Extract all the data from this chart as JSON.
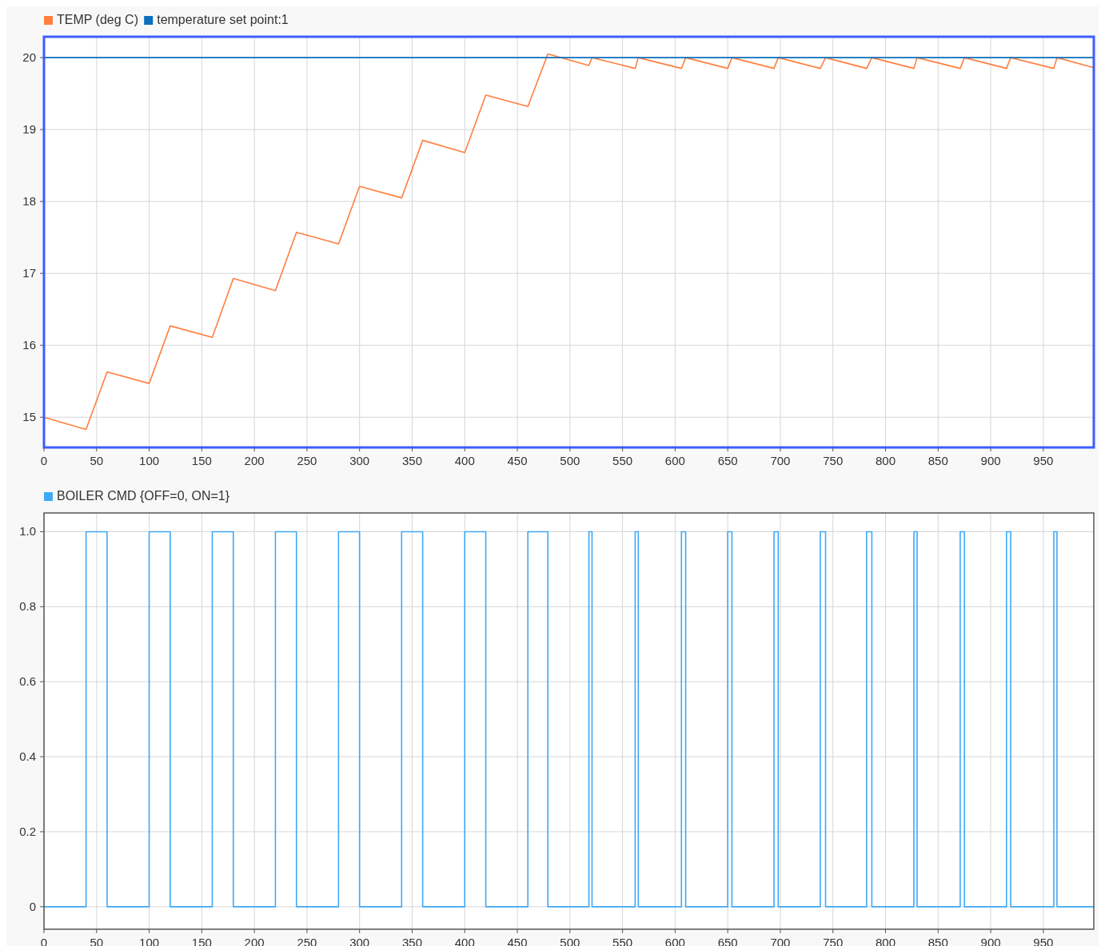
{
  "chart_data": [
    {
      "type": "line",
      "legend": "top left",
      "grid": true,
      "xlim": [
        0,
        998
      ],
      "ylim": [
        14.58,
        20.29
      ],
      "xticks": [
        0,
        50,
        100,
        150,
        200,
        250,
        300,
        350,
        400,
        450,
        500,
        550,
        600,
        650,
        700,
        750,
        800,
        850,
        900,
        950
      ],
      "yticks": [
        15,
        16,
        17,
        18,
        19,
        20
      ],
      "series": [
        {
          "name": "TEMP (deg C)",
          "color": "#ff7f3f",
          "x": [
            0,
            40,
            60,
            100,
            120,
            160,
            180,
            220,
            240,
            280,
            300,
            340,
            360,
            400,
            420,
            460,
            479,
            518,
            521,
            562,
            565,
            606,
            610,
            650,
            654,
            694,
            698,
            738,
            743,
            782,
            787,
            827,
            830,
            871,
            875,
            915,
            919,
            960,
            963,
            998
          ],
          "values": [
            15.0,
            14.83,
            15.63,
            15.47,
            16.27,
            16.11,
            16.93,
            16.76,
            17.57,
            17.41,
            18.21,
            18.05,
            18.85,
            18.68,
            19.48,
            19.32,
            20.05,
            19.89,
            20.0,
            19.85,
            20.0,
            19.85,
            20.0,
            19.85,
            20.0,
            19.85,
            20.0,
            19.85,
            20.0,
            19.85,
            20.0,
            19.85,
            20.0,
            19.85,
            20.0,
            19.85,
            20.0,
            19.85,
            20.0,
            19.86
          ]
        },
        {
          "name": "temperature set point:1",
          "color": "#0b6fbd",
          "x": [
            0,
            998
          ],
          "values": [
            20,
            20
          ]
        }
      ]
    },
    {
      "type": "step",
      "legend": "top left",
      "grid": true,
      "xlim": [
        0,
        998
      ],
      "ylim": [
        -0.06,
        1.05
      ],
      "xticks": [
        0,
        50,
        100,
        150,
        200,
        250,
        300,
        350,
        400,
        450,
        500,
        550,
        600,
        650,
        700,
        750,
        800,
        850,
        900,
        950
      ],
      "yticks": [
        0,
        0.2,
        0.4,
        0.6,
        0.8,
        {
          "value": 1,
          "label": "1.0"
        }
      ],
      "series": [
        {
          "name": "BOILER CMD {OFF=0, ON=1}",
          "color": "#3fa9f5",
          "x": [
            0,
            40,
            60,
            100,
            120,
            160,
            180,
            220,
            240,
            280,
            300,
            340,
            360,
            400,
            420,
            460,
            479,
            518,
            521,
            562,
            565,
            606,
            610,
            650,
            654,
            694,
            698,
            738,
            743,
            782,
            787,
            827,
            830,
            871,
            875,
            915,
            919,
            960,
            963,
            998
          ],
          "values": [
            0,
            1,
            0,
            1,
            0,
            1,
            0,
            1,
            0,
            1,
            0,
            1,
            0,
            1,
            0,
            1,
            0,
            1,
            0,
            1,
            0,
            1,
            0,
            1,
            0,
            1,
            0,
            1,
            0,
            1,
            0,
            1,
            0,
            1,
            0,
            1,
            0,
            1,
            0,
            0
          ]
        }
      ]
    }
  ]
}
